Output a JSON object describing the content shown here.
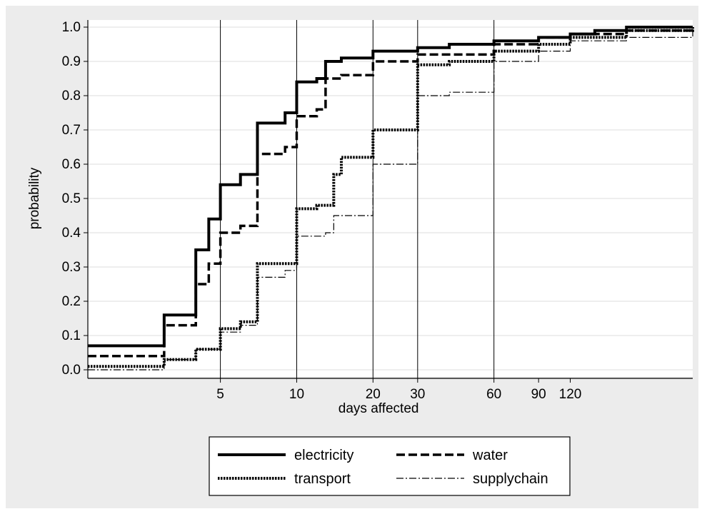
{
  "chart_data": {
    "type": "line",
    "step": true,
    "xlabel": "days affected",
    "ylabel": "probability",
    "x_scale": "log",
    "xlim": [
      1.5,
      365
    ],
    "ylim": [
      0,
      1.0
    ],
    "x_ticks": [
      5,
      10,
      20,
      30,
      60,
      90,
      120
    ],
    "x_tick_labels": [
      "5",
      "10",
      "20",
      "30",
      "60",
      "90",
      "120"
    ],
    "y_ticks": [
      0.0,
      0.1,
      0.2,
      0.3,
      0.4,
      0.5,
      0.6,
      0.7,
      0.8,
      0.9,
      1.0
    ],
    "y_tick_labels": [
      "0.0",
      "0.1",
      "0.2",
      "0.3",
      "0.4",
      "0.5",
      "0.6",
      "0.7",
      "0.8",
      "0.9",
      "1.0"
    ],
    "reference_lines_x": [
      5,
      10,
      20,
      30,
      60
    ],
    "grid": "horizontal",
    "legend_position": "bottom",
    "series": [
      {
        "name": "electricity",
        "color": "#000000",
        "style": "solid-thick",
        "x": [
          1.5,
          3,
          4,
          4.5,
          5,
          6,
          7,
          9,
          10,
          12,
          13,
          15,
          20,
          30,
          40,
          60,
          90,
          120,
          150,
          200,
          365
        ],
        "y": [
          0.07,
          0.16,
          0.35,
          0.44,
          0.54,
          0.57,
          0.72,
          0.75,
          0.84,
          0.85,
          0.9,
          0.91,
          0.93,
          0.94,
          0.95,
          0.96,
          0.97,
          0.98,
          0.99,
          1.0,
          1.0
        ]
      },
      {
        "name": "water",
        "color": "#000000",
        "style": "dashed",
        "x": [
          1.5,
          3,
          4,
          4.5,
          5,
          6,
          7,
          9,
          10,
          12,
          13,
          15,
          20,
          30,
          60,
          90,
          120,
          200,
          365
        ],
        "y": [
          0.04,
          0.13,
          0.25,
          0.31,
          0.4,
          0.42,
          0.63,
          0.65,
          0.74,
          0.76,
          0.85,
          0.86,
          0.9,
          0.92,
          0.95,
          0.97,
          0.98,
          0.99,
          1.0
        ]
      },
      {
        "name": "transport",
        "color": "#000000",
        "style": "dotted-thick",
        "x": [
          1.5,
          3,
          4,
          5,
          6,
          7,
          10,
          12,
          14,
          15,
          20,
          30,
          40,
          60,
          90,
          120,
          200,
          365
        ],
        "y": [
          0.01,
          0.03,
          0.06,
          0.12,
          0.14,
          0.31,
          0.47,
          0.48,
          0.57,
          0.62,
          0.7,
          0.89,
          0.9,
          0.93,
          0.95,
          0.97,
          0.99,
          1.0
        ]
      },
      {
        "name": "supplychain",
        "color": "#000000",
        "style": "dashdot-thin",
        "x": [
          1.5,
          3,
          4,
          5,
          6,
          7,
          9,
          10,
          13,
          14,
          20,
          30,
          40,
          60,
          90,
          120,
          200,
          365
        ],
        "y": [
          0.0,
          0.03,
          0.06,
          0.11,
          0.13,
          0.27,
          0.29,
          0.39,
          0.4,
          0.45,
          0.6,
          0.8,
          0.81,
          0.9,
          0.93,
          0.96,
          0.97,
          1.0
        ]
      }
    ]
  }
}
